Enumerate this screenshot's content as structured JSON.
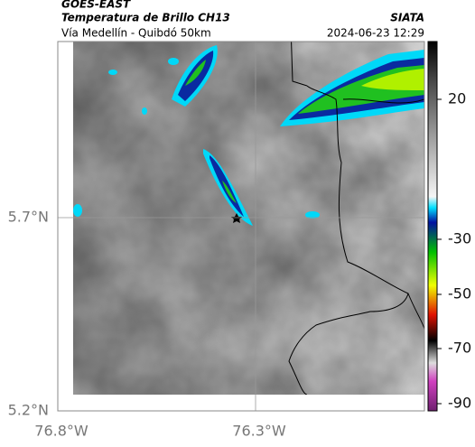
{
  "header": {
    "title": "GOES-EAST",
    "subtitle": "Temperatura de Brillo CH13",
    "location": "Vía Medellín - Quibdó 50km",
    "source": "SIATA",
    "datetime": "2024-06-23 12:29"
  },
  "map": {
    "lat_labels": [
      "5.7°N",
      "5.2°N"
    ],
    "lon_labels": [
      "76.8°W",
      "76.3°W"
    ]
  },
  "colorbar": {
    "ticks": [
      "20",
      "-30",
      "-50",
      "-70",
      "-90"
    ]
  }
}
